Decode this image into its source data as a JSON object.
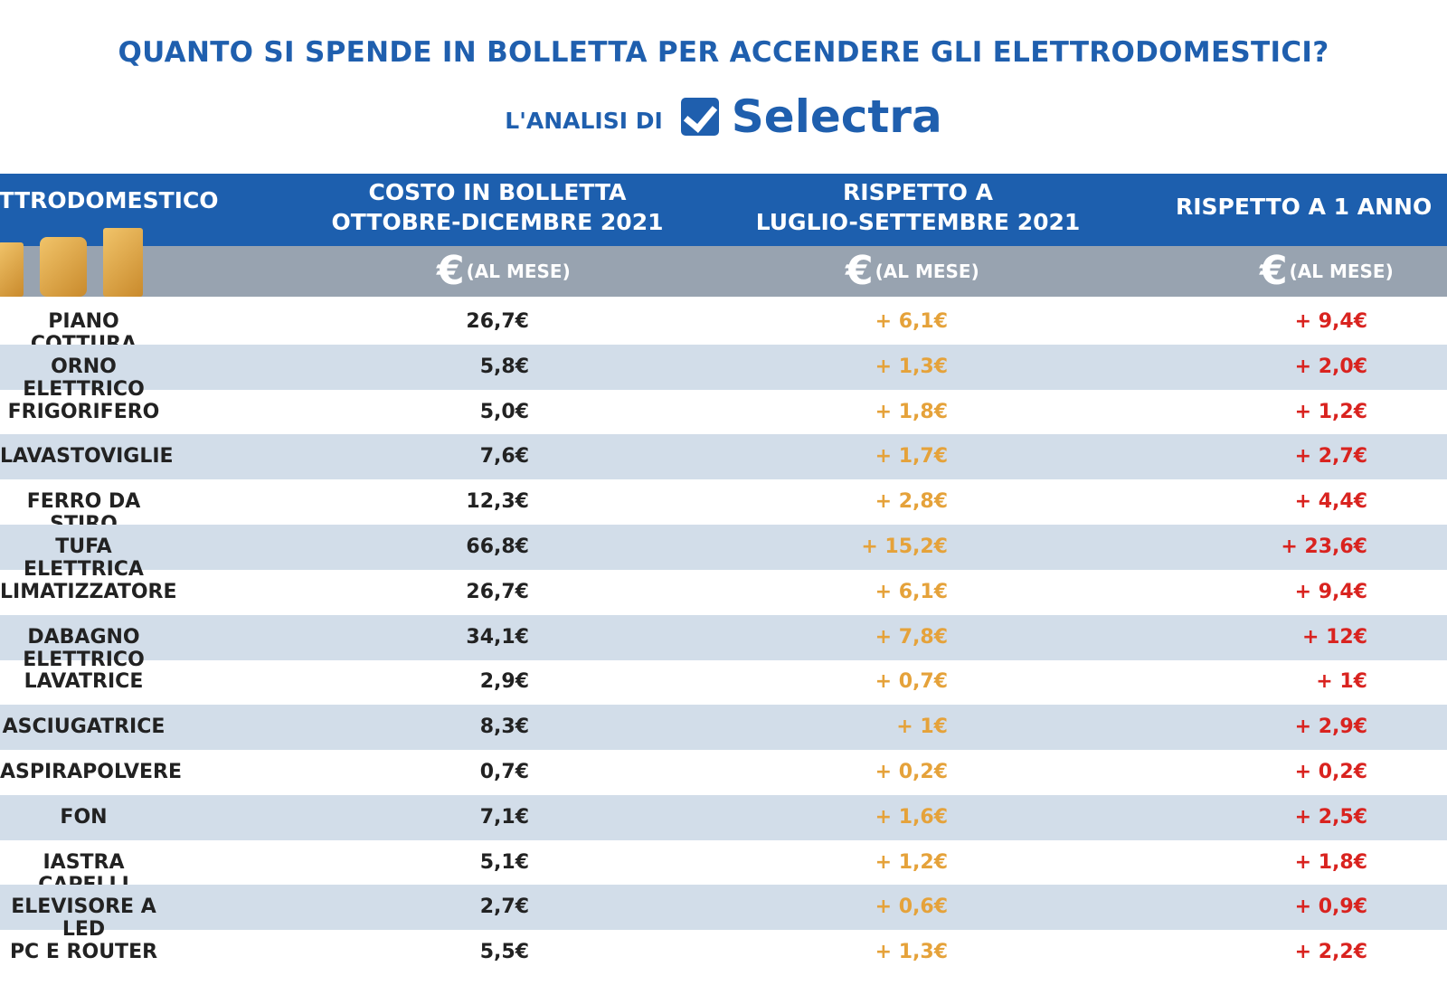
{
  "header": {
    "title": "QUANTO SI SPENDE IN BOLLETTA PER ACCENDERE GLI ELETTRODOMESTICI?",
    "subtitle": "L'ANALISI DI",
    "brand": "Selectra"
  },
  "colors": {
    "blue": "#1d5fae",
    "gray": "#98a3b0",
    "row_alt": "#d2dde9",
    "orange": "#e5a23a",
    "red": "#d9231f"
  },
  "chart_data": {
    "type": "table",
    "columns": [
      "TTRODOMESTICO",
      "COSTO IN BOLLETTA OTTOBRE-DICEMBRE 2021",
      "RISPETTO A LUGLIO-SETTEMBRE 2021",
      "RISPETTO A 1 ANNO"
    ],
    "column_lines": [
      [
        "TTRODOMESTICO"
      ],
      [
        "COSTO IN BOLLETTA",
        "OTTOBRE-DICEMBRE 2021"
      ],
      [
        "RISPETTO A",
        "LUGLIO-SETTEMBRE 2021"
      ],
      [
        "RISPETTO A 1 ANNO"
      ]
    ],
    "unit_symbol": "€",
    "unit_label": "(AL MESE)",
    "rows": [
      [
        "PIANO COTTURA",
        "26,7€",
        "+ 6,1€",
        "+ 9,4€"
      ],
      [
        "ORNO ELETTRICO",
        "5,8€",
        "+ 1,3€",
        "+ 2,0€"
      ],
      [
        "FRIGORIFERO",
        "5,0€",
        "+ 1,8€",
        "+ 1,2€"
      ],
      [
        "LAVASTOVIGLIE",
        "7,6€",
        "+ 1,7€",
        "+ 2,7€"
      ],
      [
        "FERRO DA STIRO",
        "12,3€",
        "+ 2,8€",
        "+ 4,4€"
      ],
      [
        "TUFA ELETTRICA",
        "66,8€",
        "+ 15,2€",
        "+ 23,6€"
      ],
      [
        "LIMATIZZATORE",
        "26,7€",
        "+ 6,1€",
        "+ 9,4€"
      ],
      [
        "DABAGNO ELETTRICO",
        "34,1€",
        "+ 7,8€",
        "+ 12€"
      ],
      [
        "LAVATRICE",
        "2,9€",
        "+ 0,7€",
        "+ 1€"
      ],
      [
        "ASCIUGATRICE",
        "8,3€",
        "+ 1€",
        "+ 2,9€"
      ],
      [
        "ASPIRAPOLVERE",
        "0,7€",
        "+ 0,2€",
        "+ 0,2€"
      ],
      [
        "FON",
        "7,1€",
        "+ 1,6€",
        "+ 2,5€"
      ],
      [
        "IASTRA CAPELLI",
        "5,1€",
        "+ 1,2€",
        "+ 1,8€"
      ],
      [
        "ELEVISORE A LED",
        "2,7€",
        "+ 0,6€",
        "+ 0,9€"
      ],
      [
        "PC E ROUTER",
        "5,5€",
        "+ 1,3€",
        "+ 2,2€"
      ]
    ]
  }
}
